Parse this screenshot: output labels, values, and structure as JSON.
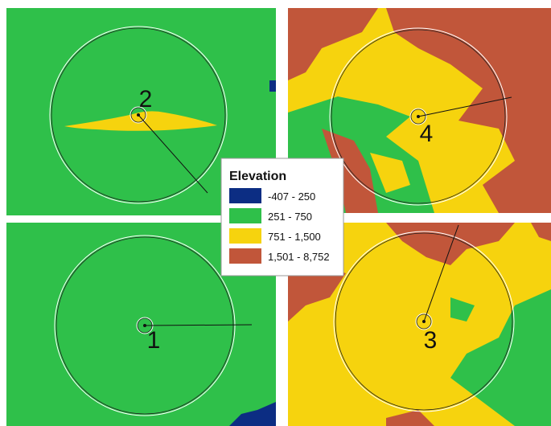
{
  "legend": {
    "title": "Elevation",
    "items": [
      {
        "label": "-407 - 250",
        "color": "#0c2d83"
      },
      {
        "label": "251 - 750",
        "color": "#2fc04a"
      },
      {
        "label": "751 - 1,500",
        "color": "#f6d30e"
      },
      {
        "label": "1,501 - 8,752",
        "color": "#c1563a"
      }
    ]
  },
  "sites": [
    {
      "label": "2"
    },
    {
      "label": "4"
    },
    {
      "label": "1"
    },
    {
      "label": "3"
    }
  ]
}
